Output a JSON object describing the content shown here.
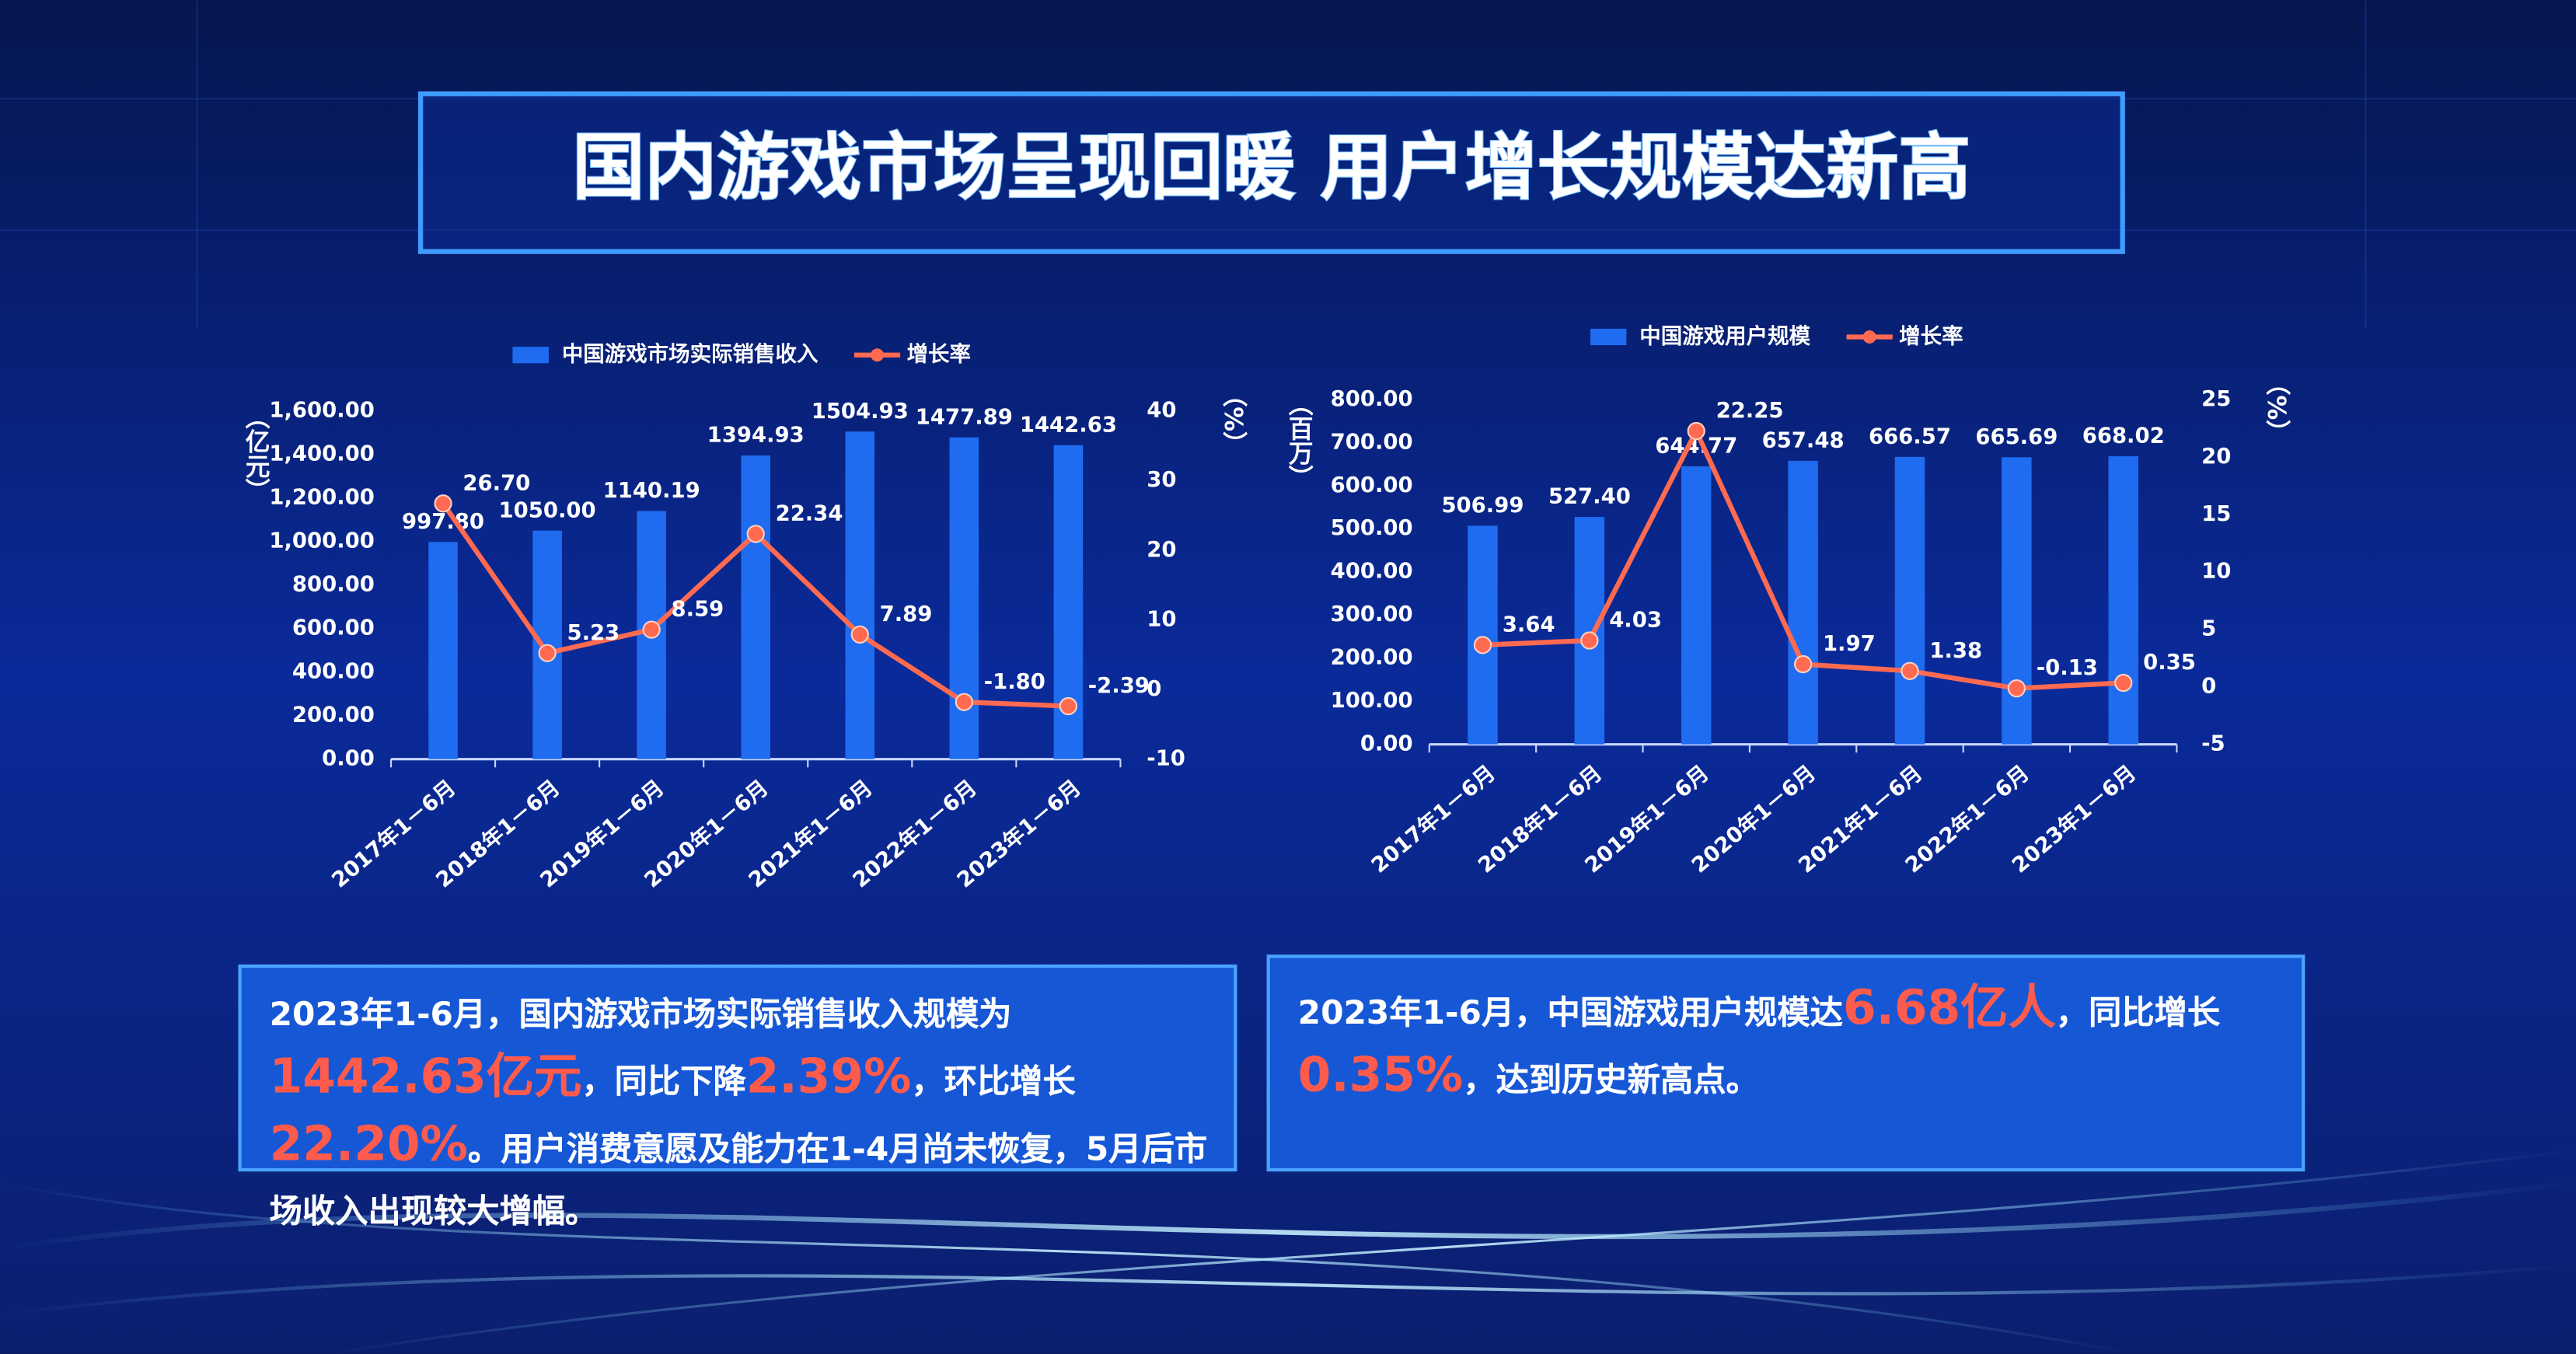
{
  "title": "国内游戏市场呈现回暖 用户增长规模达新高",
  "chart_data": [
    {
      "type": "bar",
      "categories": [
        "2017年1－6月",
        "2018年1－6月",
        "2019年1－6月",
        "2020年1－6月",
        "2021年1－6月",
        "2022年1－6月",
        "2023年1－6月"
      ],
      "ylabel": "（亿元）",
      "y2label": "（%）",
      "series": [
        {
          "name": "中国游戏市场实际销售收入",
          "type": "bar",
          "color": "#1f6cf0",
          "values": [
            997.8,
            1050.0,
            1140.19,
            1394.93,
            1504.93,
            1477.89,
            1442.63
          ],
          "value_labels": [
            "997.80",
            "1050.00",
            "1140.19",
            "1394.93",
            "1504.93",
            "1477.89",
            "1442.63"
          ]
        },
        {
          "name": "增长率",
          "type": "line",
          "axis": "y2",
          "color": "#ff6a50",
          "values": [
            26.7,
            5.23,
            8.59,
            22.34,
            7.89,
            -1.8,
            -2.39
          ],
          "value_labels": [
            "26.70",
            "5.23",
            "8.59",
            "22.34",
            "7.89",
            "-1.80",
            "-2.39"
          ]
        }
      ],
      "ylim": [
        0,
        1600
      ],
      "yticks": [
        {
          "value": 0,
          "label": "0.00"
        },
        {
          "value": 200,
          "label": "200.00"
        },
        {
          "value": 400,
          "label": "400.00"
        },
        {
          "value": 600,
          "label": "600.00"
        },
        {
          "value": 800,
          "label": "800.00"
        },
        {
          "value": 1000,
          "label": "1,000.00"
        },
        {
          "value": 1200,
          "label": "1,200.00"
        },
        {
          "value": 1400,
          "label": "1,400.00"
        },
        {
          "value": 1600,
          "label": "1,600.00"
        }
      ],
      "y2lim": [
        -10,
        40
      ],
      "y2ticks": [
        -10,
        0,
        10,
        20,
        30,
        40
      ]
    },
    {
      "type": "bar",
      "categories": [
        "2017年1－6月",
        "2018年1－6月",
        "2019年1－6月",
        "2020年1－6月",
        "2021年1－6月",
        "2022年1－6月",
        "2023年1－6月"
      ],
      "ylabel": "（百万）",
      "y2label": "（%）",
      "series": [
        {
          "name": "中国游戏用户规模",
          "type": "bar",
          "color": "#1f6cf0",
          "values": [
            506.99,
            527.4,
            644.77,
            657.48,
            666.57,
            665.69,
            668.02
          ],
          "value_labels": [
            "506.99",
            "527.40",
            "644.77",
            "657.48",
            "666.57",
            "665.69",
            "668.02"
          ]
        },
        {
          "name": "增长率",
          "type": "line",
          "axis": "y2",
          "color": "#ff6a50",
          "values": [
            3.64,
            4.03,
            22.25,
            1.97,
            1.38,
            -0.13,
            0.35
          ]
        }
      ],
      "ylim": [
        0,
        800
      ],
      "yticks": [
        {
          "value": 0,
          "label": "0.00"
        },
        {
          "value": 100,
          "label": "100.00"
        },
        {
          "value": 200,
          "label": "200.00"
        },
        {
          "value": 300,
          "label": "300.00"
        },
        {
          "value": 400,
          "label": "400.00"
        },
        {
          "value": 500,
          "label": "500.00"
        },
        {
          "value": 600,
          "label": "600.00"
        },
        {
          "value": 700,
          "label": "700.00"
        },
        {
          "value": 800,
          "label": "800.00"
        }
      ],
      "y2lim": [
        -5,
        25
      ],
      "y2ticks": [
        -5,
        0,
        5,
        10,
        15,
        20,
        25
      ]
    }
  ],
  "notes": [
    [
      "2023年1-6月，国内游戏市场实际销售收入规模为",
      "1442.63亿元",
      "，同比下降",
      "2.39%",
      "，环比增长",
      "22.20%",
      "。用户消费意愿及能力在1-4月尚未恢复，5月后市场收入出现较大增幅。"
    ],
    [
      "2023年1-6月，中国游戏用户规模达",
      "6.68亿人",
      "，同比增长",
      "0.35%",
      "，达到历史新高点。"
    ]
  ]
}
